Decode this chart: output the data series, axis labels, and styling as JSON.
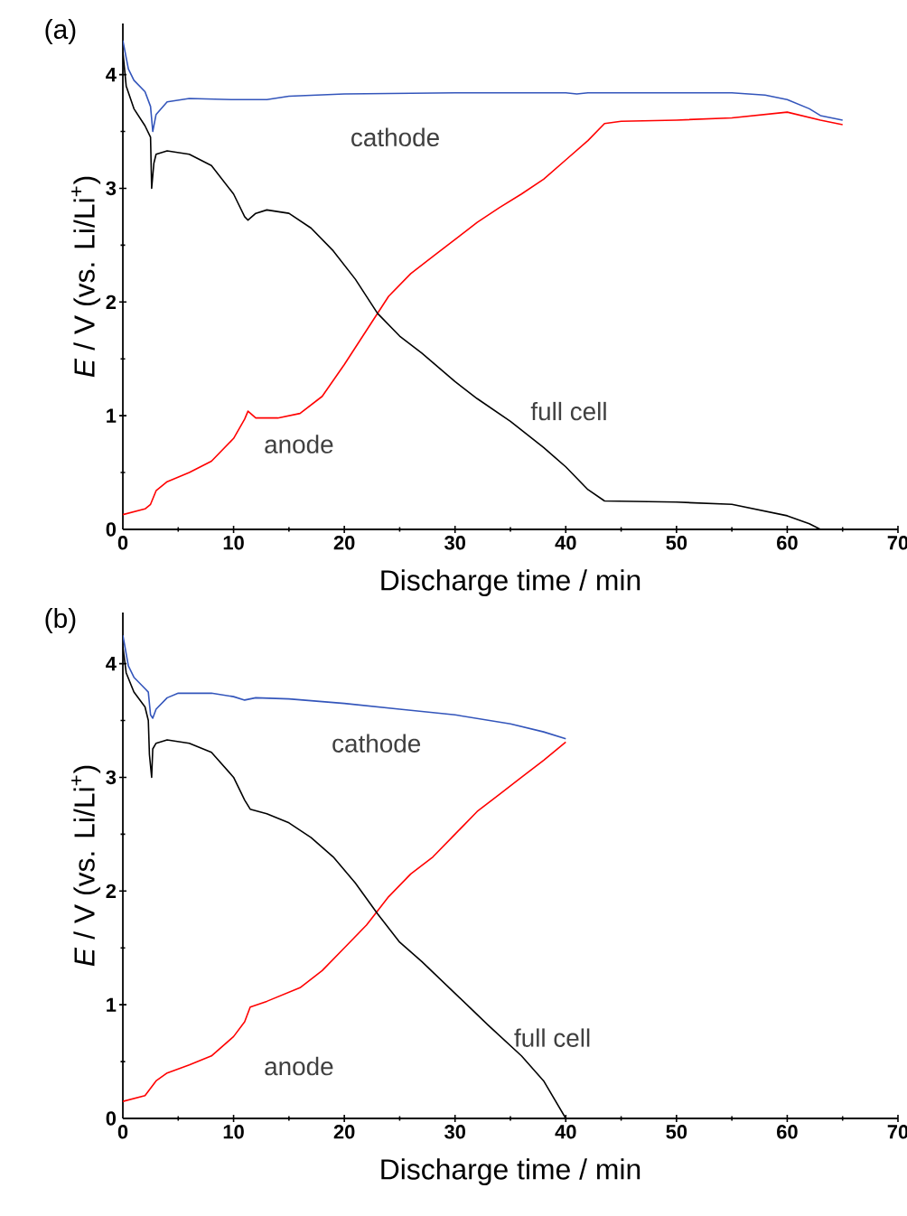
{
  "chart_data": [
    {
      "type": "line",
      "title": "(a)",
      "xlabel": "Discharge time / min",
      "ylabel": "*E* / V (vs. Li/Li$^{+}$)",
      "xlim": [
        0,
        70
      ],
      "ylim": [
        0,
        4.45
      ],
      "xticks": [
        0,
        10,
        20,
        30,
        40,
        50,
        60,
        70
      ],
      "yticks": [
        0,
        1,
        2,
        3,
        4
      ],
      "grid": false,
      "line_style": "solid",
      "series": [
        {
          "name": "cathode",
          "color": "#3355bb",
          "x": [
            0,
            0.5,
            1,
            2,
            2.5,
            2.7,
            3,
            4,
            6,
            10,
            13,
            15,
            20,
            30,
            40,
            41,
            42,
            50,
            55,
            58,
            60,
            62,
            63,
            65
          ],
          "values": [
            4.3,
            4.05,
            3.95,
            3.85,
            3.72,
            3.5,
            3.65,
            3.76,
            3.79,
            3.78,
            3.78,
            3.81,
            3.83,
            3.84,
            3.84,
            3.83,
            3.84,
            3.84,
            3.84,
            3.82,
            3.78,
            3.7,
            3.64,
            3.6
          ]
        },
        {
          "name": "anode",
          "color": "#ff0000",
          "x": [
            0,
            2,
            2.5,
            3,
            4,
            6,
            8,
            10,
            11,
            11.3,
            12,
            14,
            16,
            18,
            20,
            22,
            24,
            26,
            28,
            30,
            32,
            34,
            36,
            38,
            40,
            42,
            43.5,
            45,
            50,
            55,
            60,
            63,
            65
          ],
          "values": [
            0.13,
            0.18,
            0.22,
            0.34,
            0.42,
            0.5,
            0.6,
            0.8,
            0.97,
            1.04,
            0.98,
            0.98,
            1.02,
            1.17,
            1.45,
            1.75,
            2.05,
            2.25,
            2.4,
            2.55,
            2.7,
            2.83,
            2.95,
            3.08,
            3.25,
            3.42,
            3.57,
            3.59,
            3.6,
            3.62,
            3.67,
            3.6,
            3.56
          ]
        },
        {
          "name": "full cell",
          "color": "#000000",
          "x": [
            0,
            0.3,
            1,
            2,
            2.5,
            2.6,
            2.8,
            3,
            4,
            6,
            8,
            10,
            11,
            11.3,
            12,
            13,
            15,
            17,
            19,
            21,
            23,
            25,
            27,
            30,
            32,
            35,
            38,
            40,
            42,
            43.5,
            50,
            55,
            60,
            62,
            63,
            65
          ],
          "values": [
            4.2,
            3.9,
            3.7,
            3.55,
            3.45,
            3.0,
            3.22,
            3.3,
            3.33,
            3.3,
            3.2,
            2.95,
            2.75,
            2.72,
            2.78,
            2.81,
            2.78,
            2.65,
            2.45,
            2.2,
            1.9,
            1.7,
            1.55,
            1.3,
            1.15,
            0.95,
            0.72,
            0.55,
            0.35,
            0.25,
            0.24,
            0.22,
            0.12,
            0.05,
            0,
            0
          ]
        }
      ]
    },
    {
      "type": "line",
      "title": "(b)",
      "xlabel": "Discharge time / min",
      "ylabel": "*E* / V (vs. Li/Li$^{+}$)",
      "xlim": [
        0,
        70
      ],
      "ylim": [
        0,
        4.45
      ],
      "xticks": [
        0,
        10,
        20,
        30,
        40,
        50,
        60,
        70
      ],
      "yticks": [
        0,
        1,
        2,
        3,
        4
      ],
      "grid": false,
      "line_style": "solid",
      "series": [
        {
          "name": "cathode",
          "color": "#3355bb",
          "x": [
            0,
            0.5,
            1,
            2,
            2.3,
            2.5,
            2.7,
            3,
            4,
            5,
            8,
            10,
            11,
            12,
            15,
            20,
            25,
            30,
            35,
            38,
            40
          ],
          "values": [
            4.25,
            3.98,
            3.88,
            3.78,
            3.75,
            3.55,
            3.52,
            3.6,
            3.7,
            3.74,
            3.74,
            3.71,
            3.68,
            3.7,
            3.69,
            3.65,
            3.6,
            3.55,
            3.47,
            3.4,
            3.34
          ]
        },
        {
          "name": "anode",
          "color": "#ff0000",
          "x": [
            0,
            2,
            3,
            4,
            6,
            8,
            10,
            11,
            11.5,
            13,
            16,
            18,
            20,
            22,
            24,
            26,
            28,
            30,
            32,
            34,
            36,
            38,
            40
          ],
          "values": [
            0.15,
            0.2,
            0.33,
            0.4,
            0.47,
            0.55,
            0.72,
            0.85,
            0.98,
            1.03,
            1.15,
            1.3,
            1.5,
            1.7,
            1.95,
            2.15,
            2.3,
            2.5,
            2.7,
            2.85,
            3.0,
            3.15,
            3.31
          ]
        },
        {
          "name": "full cell",
          "color": "#000000",
          "x": [
            0,
            0.3,
            1,
            2,
            2.3,
            2.4,
            2.6,
            2.7,
            3,
            4,
            6,
            8,
            10,
            11,
            11.5,
            13,
            15,
            17,
            19,
            21,
            23,
            25,
            27,
            30,
            33,
            36,
            38,
            40
          ],
          "values": [
            4.15,
            3.92,
            3.75,
            3.62,
            3.5,
            3.2,
            3.0,
            3.25,
            3.3,
            3.33,
            3.3,
            3.22,
            3.0,
            2.8,
            2.72,
            2.68,
            2.6,
            2.47,
            2.3,
            2.07,
            1.8,
            1.55,
            1.38,
            1.1,
            0.82,
            0.55,
            0.33,
            0.0
          ]
        }
      ]
    }
  ]
}
